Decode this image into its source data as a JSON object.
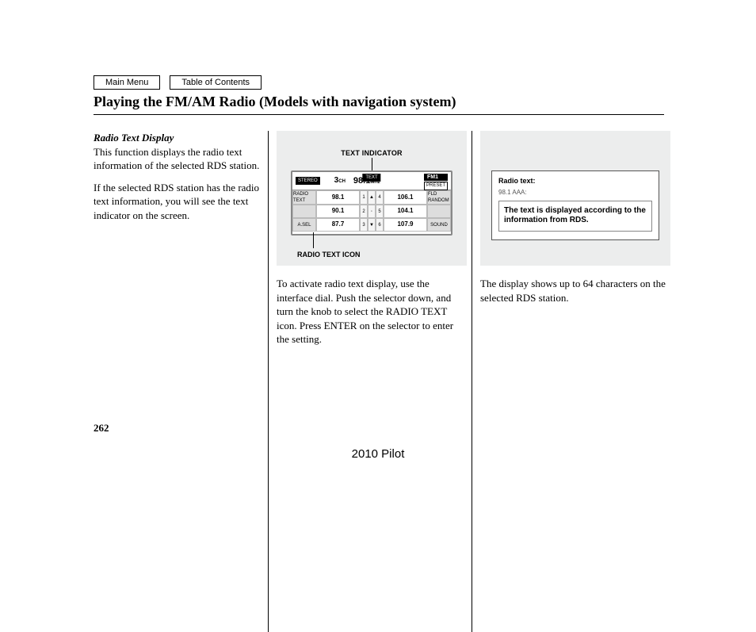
{
  "nav": {
    "main_menu": "Main Menu",
    "toc": "Table of Contents"
  },
  "title": "Playing the FM/AM Radio (Models with navigation system)",
  "col1": {
    "subhead": "Radio Text Display",
    "p1": "This function displays the radio text information of the selected RDS station.",
    "p2": "If the selected RDS station has the radio text information, you will see the text indicator on the screen."
  },
  "col2": {
    "labels": {
      "text_indicator": "TEXT INDICATOR",
      "radio_text_icon": "RADIO TEXT ICON"
    },
    "radio": {
      "stereo": "STEREO",
      "channel_num": "3",
      "channel_suffix": "CH",
      "freq_main": "98.1",
      "freq_unit": "MHz",
      "text_badge": "TEXT",
      "band": "FM1",
      "small_badge": "PRESET",
      "left_side_top": "RADIO TEXT",
      "left_side_bot": "A.SEL",
      "right_side_top": "FLD RANDOM",
      "right_side_bot": "SOUND",
      "presets": {
        "r1c1": "98.1",
        "r1c2": "106.1",
        "r2c1": "90.1",
        "r2c2": "104.1",
        "r3c1": "87.7",
        "r3c2": "107.9"
      },
      "mid_nums": {
        "a": "1",
        "b": "2",
        "c": "3",
        "d": "4",
        "e": "5",
        "f": "6"
      }
    },
    "caption": "To activate radio text display, use the interface dial. Push the selector down, and turn the knob to select the RADIO TEXT icon. Press ENTER on the selector to enter the setting."
  },
  "col3": {
    "box": {
      "title": "Radio text:",
      "sub": "98.1 AAA:",
      "body": "The text is displayed according to the information from RDS."
    },
    "caption": "The display shows up to 64 characters on the selected RDS station."
  },
  "page_number": "262",
  "footer_model": "2010 Pilot",
  "colors": {
    "panel_bg": "#eceded"
  }
}
